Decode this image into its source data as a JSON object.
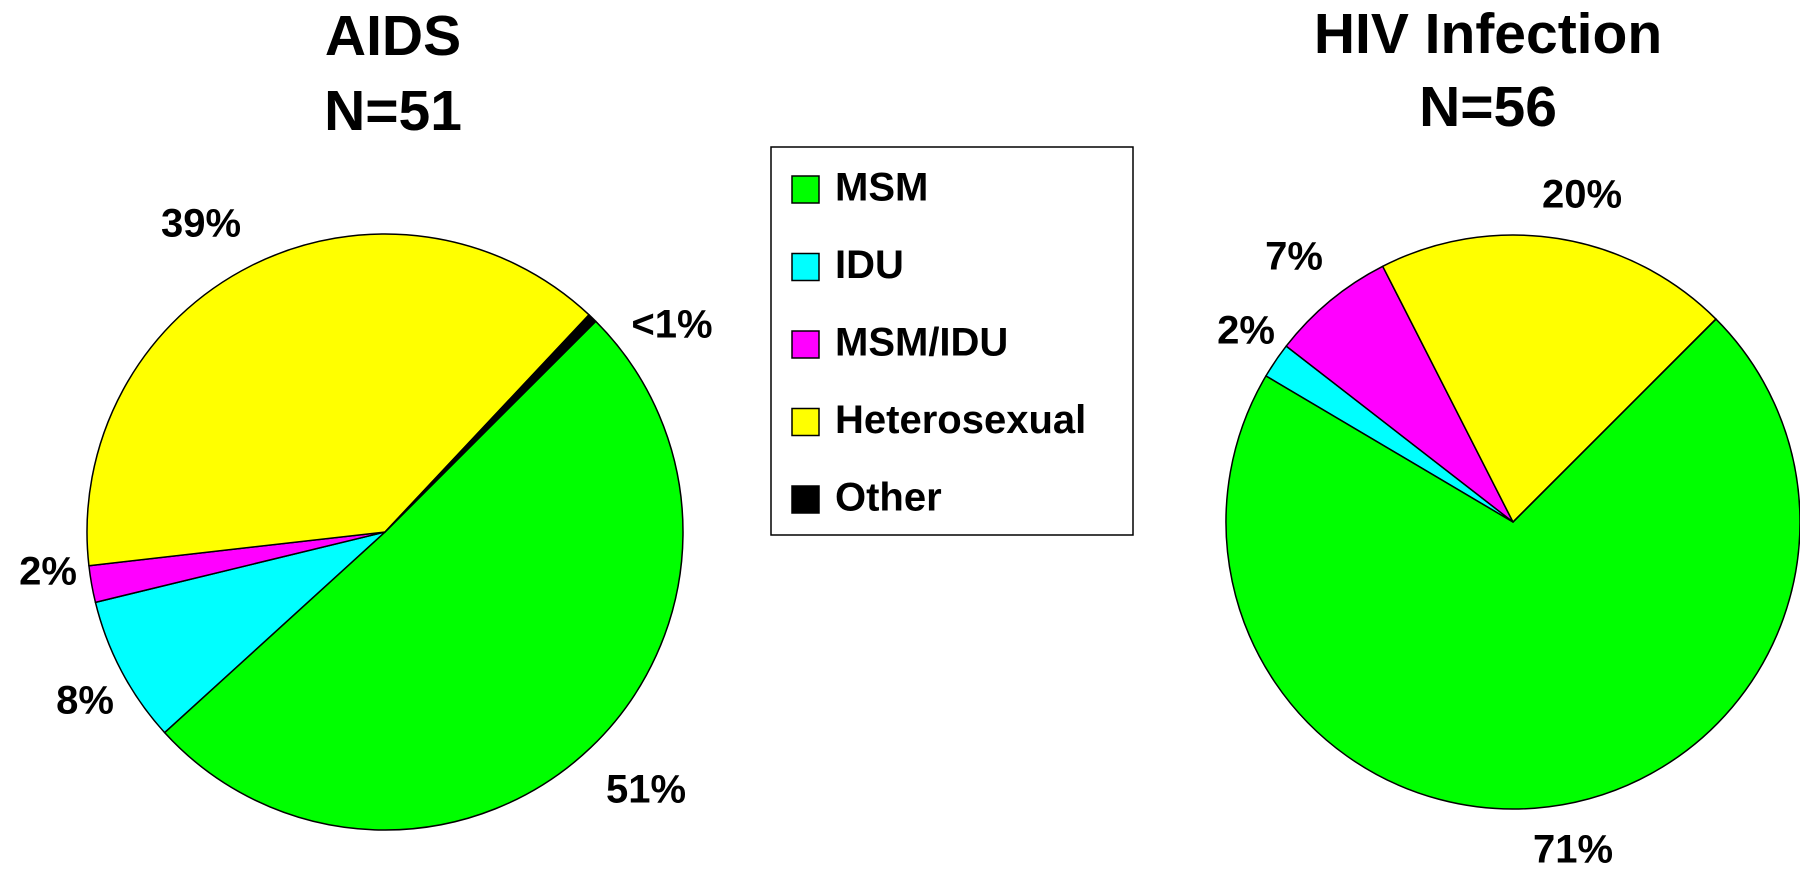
{
  "chart_data": [
    {
      "type": "pie",
      "title": "AIDS",
      "subtitle": "N=51",
      "categories": [
        "MSM",
        "IDU",
        "MSM/IDU",
        "Heterosexual",
        "Other"
      ],
      "values": [
        51,
        8,
        2,
        39,
        0.5
      ],
      "value_labels": [
        "51%",
        "8%",
        "2%",
        "39%",
        "<1%"
      ],
      "colors": [
        "#00ff00",
        "#00ffff",
        "#ff00ff",
        "#ffff00",
        "#000000"
      ]
    },
    {
      "type": "pie",
      "title": "HIV Infection",
      "subtitle": "N=56",
      "categories": [
        "MSM",
        "IDU",
        "MSM/IDU",
        "Heterosexual",
        "Other"
      ],
      "values": [
        71,
        2,
        7,
        20,
        0
      ],
      "value_labels": [
        "71%",
        "2%",
        "7%",
        "20%",
        null
      ],
      "colors": [
        "#00ff00",
        "#00ffff",
        "#ff00ff",
        "#ffff00",
        "#000000"
      ]
    }
  ]
}
